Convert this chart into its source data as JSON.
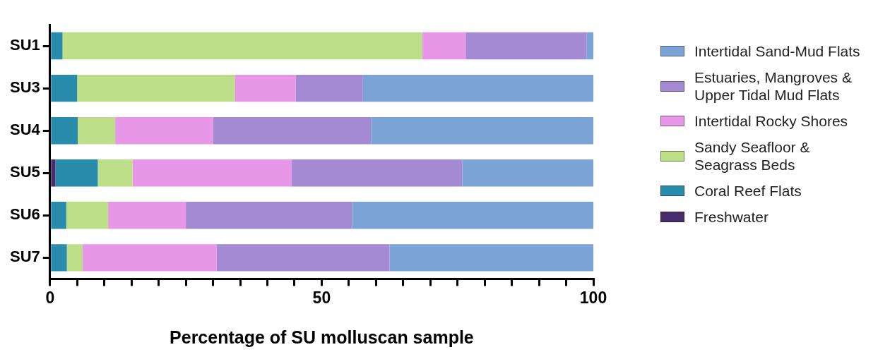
{
  "chart_data": {
    "type": "bar",
    "orientation": "horizontal",
    "stacked": true,
    "xlabel": "Percentage of SU molluscan sample",
    "categories": [
      "SU1",
      "SU3",
      "SU4",
      "SU5",
      "SU6",
      "SU7"
    ],
    "series": [
      {
        "name": "Freshwater",
        "color": "#4a2d6e",
        "values": [
          0,
          0,
          0,
          1,
          0,
          0
        ]
      },
      {
        "name": "Coral Reef Flats",
        "color": "#2a8cad",
        "values": [
          2.3,
          5,
          5.1,
          7.8,
          3,
          3.1
        ]
      },
      {
        "name": "Sandy Seafloor & Seagrass Beds",
        "color": "#bddf8a",
        "values": [
          66.2,
          29,
          6.9,
          6.4,
          7.7,
          2.9
        ]
      },
      {
        "name": "Intertidal Rocky Shores",
        "color": "#e896e8",
        "values": [
          8,
          11.2,
          18,
          29.3,
          14.3,
          24.7
        ]
      },
      {
        "name": "Estuaries, Mangroves & Upper Tidal Mud Flats",
        "color": "#a48ad3",
        "values": [
          22.3,
          12.4,
          29.1,
          31.4,
          30.6,
          31.8
        ]
      },
      {
        "name": "Intertidal Sand-Mud Flats",
        "color": "#7ba3d6",
        "values": [
          1.2,
          42.4,
          40.9,
          24.1,
          44.4,
          37.5
        ]
      }
    ],
    "xlim": [
      0,
      100
    ],
    "xticks": [
      0,
      {
        "value": 5,
        "label": null
      },
      {
        "value": 10,
        "label": null
      },
      {
        "value": 15,
        "label": null
      },
      {
        "value": 20,
        "label": null
      },
      {
        "value": 25,
        "label": null
      },
      {
        "value": 30,
        "label": null
      },
      {
        "value": 35,
        "label": null
      },
      {
        "value": 40,
        "label": null
      },
      {
        "value": 45,
        "label": null
      },
      50,
      {
        "value": 55,
        "label": null
      },
      {
        "value": 60,
        "label": null
      },
      {
        "value": 65,
        "label": null
      },
      {
        "value": 70,
        "label": null
      },
      {
        "value": 75,
        "label": null
      },
      {
        "value": 80,
        "label": null
      },
      {
        "value": 85,
        "label": null
      },
      {
        "value": 90,
        "label": null
      },
      {
        "value": 95,
        "label": null
      },
      100
    ],
    "grid": false,
    "legend": "right"
  }
}
